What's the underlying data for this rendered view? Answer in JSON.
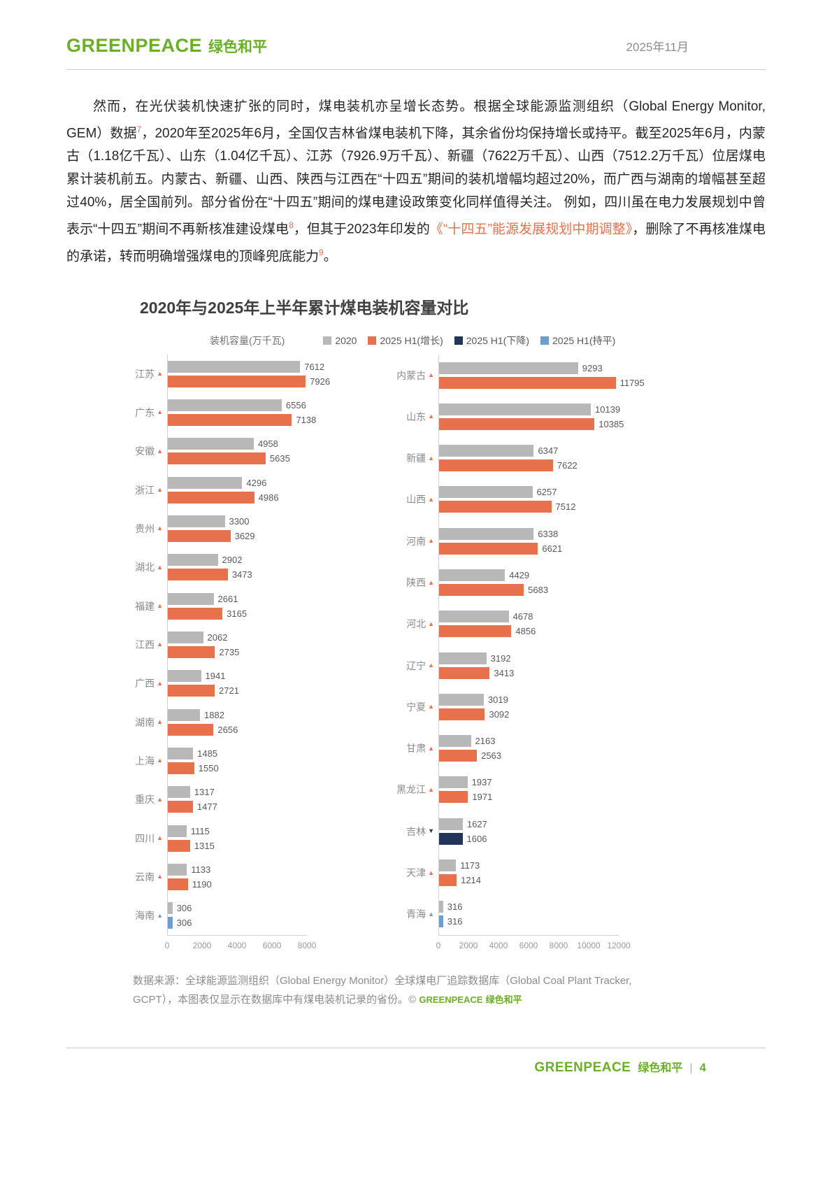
{
  "header": {
    "logo_en": "GREENPEACE",
    "logo_cn": "绿色和平",
    "date": "2025年11月"
  },
  "paragraph": {
    "segments": [
      {
        "text": "然而，在光伏装机快速扩张的同时，煤电装机亦呈增长态势。根据全球能源监测组织（Global Energy Monitor, GEM）数据",
        "accent": false,
        "sup": false
      },
      {
        "text": "7",
        "accent": true,
        "sup": true
      },
      {
        "text": "，2020年至2025年6月，全国仅吉林省煤电装机下降，其余省份均保持增长或持平。截至2025年6月，内蒙古（1.18亿千瓦）、山东（1.04亿千瓦）、江苏（7926.9万千瓦）、新疆（7622万千瓦）、山西（7512.2万千瓦）位居煤电累计装机前五。内蒙古、新疆、山西、陕西与江西在“十四五”期间的装机增幅均超过20%，而广西与湖南的增幅甚至超过40%，居全国前列。部分省份在“十四五”期间的煤电建设政策变化同样值得关注。 例如，四川虽在电力发展规划中曾表示“十四五”期间不再新核准建设煤电",
        "accent": false,
        "sup": false
      },
      {
        "text": "8",
        "accent": true,
        "sup": true
      },
      {
        "text": "，但其于2023年印发的",
        "accent": false,
        "sup": false
      },
      {
        "text": "《“十四五”能源发展规划中期调整》",
        "accent": true,
        "sup": false
      },
      {
        "text": "，删除了不再核准煤电的承诺，转而明确增强煤电的顶峰兜底能力",
        "accent": false,
        "sup": false
      },
      {
        "text": "9",
        "accent": true,
        "sup": true
      },
      {
        "text": "。",
        "accent": false,
        "sup": false
      }
    ]
  },
  "chart_data": {
    "type": "bar",
    "orientation": "horizontal",
    "title": "2020年与2025年上半年累计煤电装机容量对比",
    "axis_title": "装机容量(万千瓦)",
    "legend_position": "top",
    "grid": false,
    "legend": [
      {
        "key": "2020",
        "label": "2020",
        "color": "#b8b8b8"
      },
      {
        "key": "up",
        "label": "2025 H1(增长)",
        "color": "#e8714d"
      },
      {
        "key": "down",
        "label": "2025 H1(下降)",
        "color": "#223459"
      },
      {
        "key": "flat",
        "label": "2025 H1(持平)",
        "color": "#6d9ece"
      }
    ],
    "panels": [
      {
        "xlim": [
          0,
          8000
        ],
        "xmax": 8000,
        "ticks": [
          0,
          2000,
          4000,
          6000,
          8000
        ],
        "rows": [
          {
            "province": "江苏",
            "trend": "up",
            "y2020": 7612,
            "y2025": 7926
          },
          {
            "province": "广东",
            "trend": "up",
            "y2020": 6556,
            "y2025": 7138
          },
          {
            "province": "安徽",
            "trend": "up",
            "y2020": 4958,
            "y2025": 5635
          },
          {
            "province": "浙江",
            "trend": "up",
            "y2020": 4296,
            "y2025": 4986
          },
          {
            "province": "贵州",
            "trend": "up",
            "y2020": 3300,
            "y2025": 3629
          },
          {
            "province": "湖北",
            "trend": "up",
            "y2020": 2902,
            "y2025": 3473
          },
          {
            "province": "福建",
            "trend": "up",
            "y2020": 2661,
            "y2025": 3165
          },
          {
            "province": "江西",
            "trend": "up",
            "y2020": 2062,
            "y2025": 2735
          },
          {
            "province": "广西",
            "trend": "up",
            "y2020": 1941,
            "y2025": 2721
          },
          {
            "province": "湖南",
            "trend": "up",
            "y2020": 1882,
            "y2025": 2656
          },
          {
            "province": "上海",
            "trend": "up",
            "y2020": 1485,
            "y2025": 1550
          },
          {
            "province": "重庆",
            "trend": "up",
            "y2020": 1317,
            "y2025": 1477
          },
          {
            "province": "四川",
            "trend": "up",
            "y2020": 1115,
            "y2025": 1315
          },
          {
            "province": "云南",
            "trend": "up",
            "y2020": 1133,
            "y2025": 1190
          },
          {
            "province": "海南",
            "trend": "flat",
            "y2020": 306,
            "y2025": 306
          }
        ]
      },
      {
        "xlim": [
          0,
          12000
        ],
        "xmax": 12000,
        "ticks": [
          0,
          2000,
          4000,
          6000,
          8000,
          10000,
          12000
        ],
        "rows": [
          {
            "province": "内蒙古",
            "trend": "up",
            "y2020": 9293,
            "y2025": 11795
          },
          {
            "province": "山东",
            "trend": "up",
            "y2020": 10139,
            "y2025": 10385
          },
          {
            "province": "新疆",
            "trend": "up",
            "y2020": 6347,
            "y2025": 7622
          },
          {
            "province": "山西",
            "trend": "up",
            "y2020": 6257,
            "y2025": 7512
          },
          {
            "province": "河南",
            "trend": "up",
            "y2020": 6338,
            "y2025": 6621
          },
          {
            "province": "陕西",
            "trend": "up",
            "y2020": 4429,
            "y2025": 5683
          },
          {
            "province": "河北",
            "trend": "up",
            "y2020": 4678,
            "y2025": 4856
          },
          {
            "province": "辽宁",
            "trend": "up",
            "y2020": 3192,
            "y2025": 3413
          },
          {
            "province": "宁夏",
            "trend": "up",
            "y2020": 3019,
            "y2025": 3092
          },
          {
            "province": "甘肃",
            "trend": "up",
            "y2020": 2163,
            "y2025": 2563
          },
          {
            "province": "黑龙江",
            "trend": "up",
            "y2020": 1937,
            "y2025": 1971
          },
          {
            "province": "吉林",
            "trend": "down",
            "y2020": 1627,
            "y2025": 1606
          },
          {
            "province": "天津",
            "trend": "up",
            "y2020": 1173,
            "y2025": 1214
          },
          {
            "province": "青海",
            "trend": "flat",
            "y2020": 316,
            "y2025": 316
          }
        ]
      }
    ],
    "source_prefix": "数据来源：全球能源监测组织（Global Energy Monitor）全球煤电厂追踪数据库（Global Coal Plant Tracker, GCPT），本图表仅显示在数据库中有煤电装机记录的省份。© ",
    "source_brand_en": "GREENPEACE",
    "source_brand_cn": "绿色和平"
  },
  "footer": {
    "brand_en": "GREENPEACE",
    "brand_cn": "绿色和平",
    "separator": "|",
    "page_number": "4"
  }
}
